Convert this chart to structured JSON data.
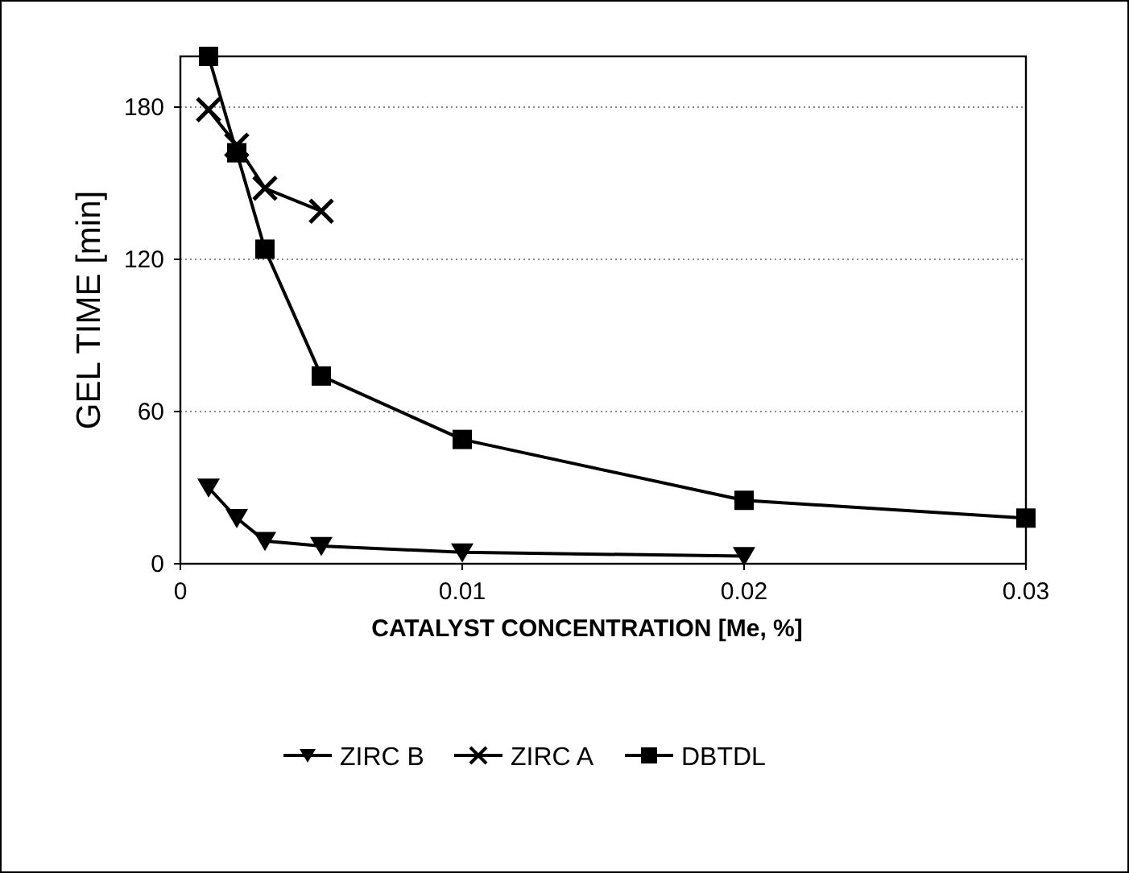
{
  "chart_data": {
    "type": "line",
    "xlabel": "CATALYST CONCENTRATION [Me, %]",
    "ylabel": "GEL TIME [min]",
    "xlim": [
      0,
      0.03
    ],
    "xticks": [
      0,
      0.01,
      0.02,
      0.03
    ],
    "ylim": [
      0,
      200
    ],
    "yticks": [
      0,
      60,
      120,
      180
    ],
    "grid": "y",
    "legend": "bottom",
    "line_style": "solid",
    "series": [
      {
        "name": "ZIRC B",
        "color": "#000000",
        "marker": "triangle",
        "x": [
          0.001,
          0.002,
          0.003,
          0.005,
          0.01,
          0.02
        ],
        "values": [
          30,
          18,
          9,
          7,
          4.5,
          3
        ]
      },
      {
        "name": "ZIRC A",
        "color": "#000000",
        "marker": "cross",
        "x": [
          0.001,
          0.002,
          0.003,
          0.005
        ],
        "values": [
          179,
          165,
          148,
          139
        ]
      },
      {
        "name": "DBTDL",
        "color": "#000000",
        "marker": "square",
        "x": [
          0.001,
          0.002,
          0.003,
          0.005,
          0.01,
          0.02,
          0.03
        ],
        "values": [
          200,
          162,
          124,
          74,
          49,
          25,
          18
        ]
      }
    ]
  }
}
